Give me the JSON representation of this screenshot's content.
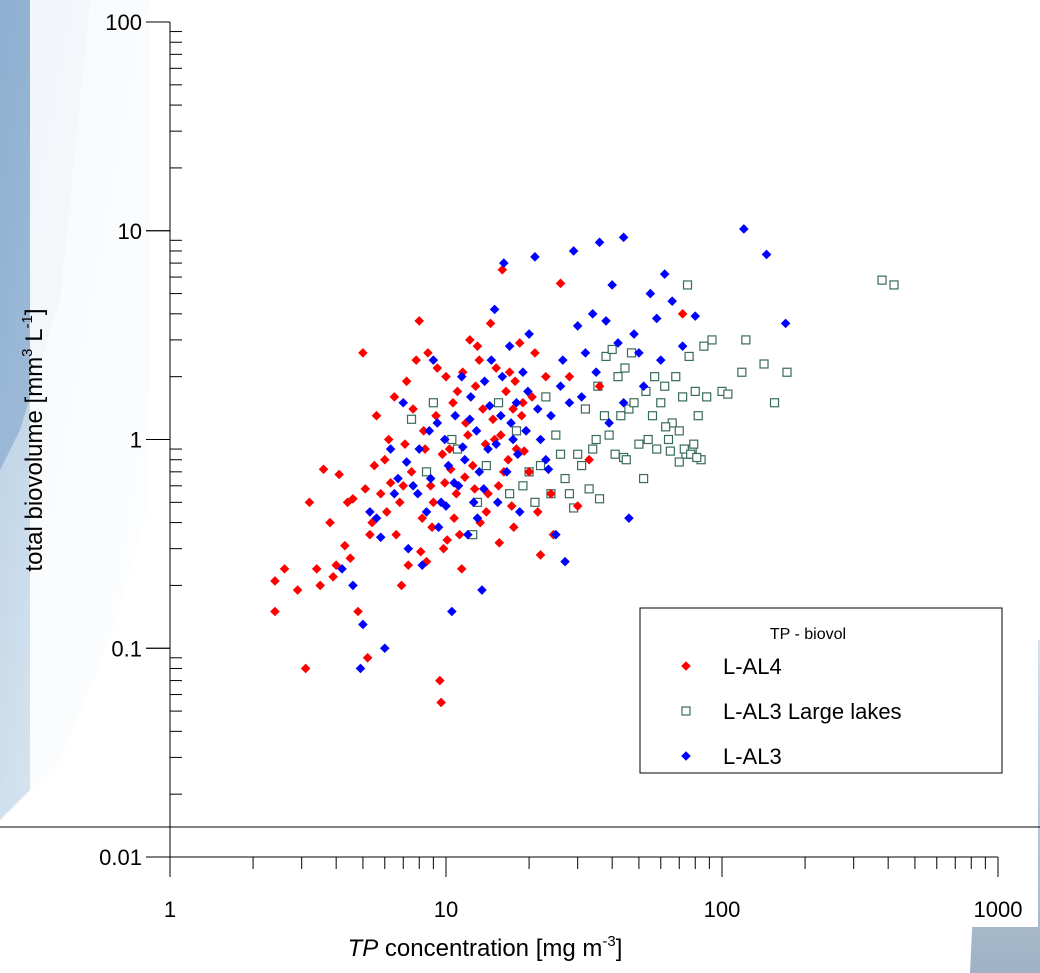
{
  "chart_data": {
    "type": "scatter",
    "xscale": "log",
    "yscale": "log",
    "xlim": [
      1,
      1000
    ],
    "ylim": [
      0.01,
      100
    ],
    "grid": false,
    "legend_placement": "bottom-right",
    "title": "",
    "xlabel": {
      "italic_part": "TP",
      "text_part": " concentration [mg m",
      "superscript": "-3",
      "suffix": "]"
    },
    "ylabel": {
      "text_part": "total biovolume [mm",
      "superscript1": "3",
      "middle": " L",
      "superscript2": "-1",
      "suffix": "]"
    },
    "x_ticks": [
      {
        "value": 1,
        "label": "1"
      },
      {
        "value": 10,
        "label": "10"
      },
      {
        "value": 100,
        "label": "100"
      },
      {
        "value": 1000,
        "label": "1000"
      }
    ],
    "y_ticks": [
      {
        "value": 0.01,
        "label": "0.01"
      },
      {
        "value": 0.1,
        "label": "0.1"
      },
      {
        "value": 1,
        "label": "1"
      },
      {
        "value": 10,
        "label": "10"
      },
      {
        "value": 100,
        "label": "100"
      }
    ],
    "legend_title": "TP - biovol",
    "series": [
      {
        "name": "L-AL4",
        "marker": "filled-diamond",
        "color": "#ff0000",
        "points": [
          [
            2.4,
            0.15
          ],
          [
            2.4,
            0.21
          ],
          [
            2.6,
            0.24
          ],
          [
            2.9,
            0.19
          ],
          [
            3.1,
            0.08
          ],
          [
            3.2,
            0.5
          ],
          [
            3.4,
            0.24
          ],
          [
            3.6,
            0.72
          ],
          [
            3.8,
            0.4
          ],
          [
            3.9,
            0.22
          ],
          [
            4.1,
            0.68
          ],
          [
            4.3,
            0.31
          ],
          [
            4.5,
            0.27
          ],
          [
            4.6,
            0.52
          ],
          [
            4.8,
            0.15
          ],
          [
            5.0,
            2.6
          ],
          [
            5.1,
            0.58
          ],
          [
            5.2,
            0.09
          ],
          [
            5.4,
            0.4
          ],
          [
            5.6,
            1.3
          ],
          [
            5.8,
            0.55
          ],
          [
            6.0,
            0.8
          ],
          [
            6.2,
            1.0
          ],
          [
            6.5,
            1.6
          ],
          [
            6.8,
            0.5
          ],
          [
            7.0,
            0.6
          ],
          [
            7.2,
            1.9
          ],
          [
            7.5,
            0.7
          ],
          [
            7.8,
            2.4
          ],
          [
            8.0,
            3.7
          ],
          [
            8.2,
            0.42
          ],
          [
            8.4,
            0.9
          ],
          [
            8.6,
            2.6
          ],
          [
            8.8,
            0.6
          ],
          [
            9.0,
            0.5
          ],
          [
            9.2,
            1.3
          ],
          [
            9.5,
            0.07
          ],
          [
            9.6,
            0.055
          ],
          [
            9.8,
            0.3
          ],
          [
            10.0,
            2.0
          ],
          [
            10.3,
            0.9
          ],
          [
            10.6,
            1.5
          ],
          [
            10.9,
            0.55
          ],
          [
            11.2,
            0.35
          ],
          [
            11.5,
            2.1
          ],
          [
            11.8,
            1.2
          ],
          [
            12.2,
            3.0
          ],
          [
            12.5,
            0.75
          ],
          [
            12.8,
            1.8
          ],
          [
            13.2,
            2.4
          ],
          [
            13.6,
            1.4
          ],
          [
            14.0,
            0.45
          ],
          [
            14.5,
            3.6
          ],
          [
            15.0,
            1.0
          ],
          [
            15.5,
            0.6
          ],
          [
            16.0,
            6.5
          ],
          [
            16.5,
            1.7
          ],
          [
            17.0,
            2.1
          ],
          [
            17.5,
            1.4
          ],
          [
            18.0,
            0.9
          ],
          [
            18.5,
            2.9
          ],
          [
            19.0,
            1.5
          ],
          [
            20.0,
            0.7
          ],
          [
            21.0,
            2.6
          ],
          [
            22.0,
            0.28
          ],
          [
            23.0,
            2.0
          ],
          [
            24.0,
            0.55
          ],
          [
            26.0,
            5.6
          ],
          [
            28.0,
            2.0
          ],
          [
            30.0,
            0.48
          ],
          [
            33.0,
            0.8
          ],
          [
            36.0,
            1.8
          ],
          [
            72.0,
            4.0
          ],
          [
            6.1,
            0.45
          ],
          [
            6.6,
            0.35
          ],
          [
            7.3,
            0.25
          ],
          [
            8.1,
            0.29
          ],
          [
            8.9,
            0.38
          ],
          [
            9.9,
            0.62
          ],
          [
            10.7,
            0.42
          ],
          [
            11.7,
            0.66
          ],
          [
            12.7,
            0.58
          ],
          [
            13.9,
            0.95
          ],
          [
            14.8,
            1.25
          ],
          [
            15.8,
            1.05
          ],
          [
            16.8,
            0.8
          ],
          [
            17.8,
            1.9
          ],
          [
            19.5,
            1.1
          ],
          [
            7.6,
            1.4
          ],
          [
            9.3,
            2.2
          ],
          [
            11.0,
            1.7
          ],
          [
            13.0,
            2.8
          ],
          [
            15.2,
            2.2
          ],
          [
            18.8,
            1.3
          ],
          [
            20.5,
            1.6
          ],
          [
            5.3,
            0.35
          ],
          [
            4.4,
            0.5
          ],
          [
            3.5,
            0.2
          ],
          [
            4.0,
            0.25
          ],
          [
            5.5,
            0.75
          ],
          [
            6.3,
            0.62
          ],
          [
            7.1,
            0.95
          ],
          [
            8.3,
            1.1
          ],
          [
            9.7,
            0.85
          ],
          [
            10.4,
            0.72
          ],
          [
            12.0,
            1.05
          ],
          [
            14.2,
            0.55
          ],
          [
            16.2,
            0.7
          ],
          [
            17.3,
            0.48
          ],
          [
            19.2,
            0.88
          ],
          [
            6.9,
            0.2
          ],
          [
            8.5,
            0.26
          ],
          [
            10.1,
            0.33
          ],
          [
            11.4,
            0.24
          ],
          [
            13.3,
            0.4
          ],
          [
            15.6,
            0.32
          ],
          [
            17.6,
            0.38
          ],
          [
            21.5,
            0.45
          ],
          [
            24.5,
            0.35
          ]
        ]
      },
      {
        "name": "L-AL3 Large lakes",
        "marker": "open-square",
        "color": "#3a6b5a",
        "points": [
          [
            7.5,
            1.25
          ],
          [
            8.5,
            0.7
          ],
          [
            9.0,
            1.5
          ],
          [
            10.5,
            1.0
          ],
          [
            11.0,
            0.9
          ],
          [
            12.5,
            0.35
          ],
          [
            13.0,
            0.5
          ],
          [
            14.0,
            0.75
          ],
          [
            15.5,
            1.5
          ],
          [
            17.0,
            0.55
          ],
          [
            18.0,
            1.1
          ],
          [
            19.0,
            0.6
          ],
          [
            20.0,
            0.7
          ],
          [
            21.0,
            0.5
          ],
          [
            22.0,
            0.75
          ],
          [
            23.0,
            1.6
          ],
          [
            24.0,
            0.55
          ],
          [
            25.0,
            1.05
          ],
          [
            26.0,
            0.85
          ],
          [
            27.0,
            0.65
          ],
          [
            28.0,
            0.55
          ],
          [
            29.0,
            0.47
          ],
          [
            30.0,
            0.85
          ],
          [
            31.0,
            0.75
          ],
          [
            32.0,
            1.4
          ],
          [
            33.0,
            0.58
          ],
          [
            34.0,
            0.9
          ],
          [
            35.0,
            1.0
          ],
          [
            36.0,
            0.52
          ],
          [
            38.0,
            2.5
          ],
          [
            39.0,
            1.05
          ],
          [
            40.0,
            2.7
          ],
          [
            41.0,
            0.85
          ],
          [
            42.0,
            2.0
          ],
          [
            43.0,
            1.3
          ],
          [
            44.0,
            0.82
          ],
          [
            45.0,
            0.8
          ],
          [
            46.0,
            1.4
          ],
          [
            47.0,
            2.6
          ],
          [
            48.0,
            1.5
          ],
          [
            50.0,
            0.95
          ],
          [
            52.0,
            0.65
          ],
          [
            54.0,
            1.0
          ],
          [
            56.0,
            1.3
          ],
          [
            58.0,
            0.9
          ],
          [
            60.0,
            1.5
          ],
          [
            62.0,
            1.8
          ],
          [
            64.0,
            1.0
          ],
          [
            66.0,
            1.2
          ],
          [
            68.0,
            2.0
          ],
          [
            70.0,
            1.1
          ],
          [
            72.0,
            1.6
          ],
          [
            74.0,
            0.85
          ],
          [
            75.0,
            5.5
          ],
          [
            76.0,
            2.5
          ],
          [
            78.0,
            0.9
          ],
          [
            80.0,
            1.7
          ],
          [
            82.0,
            1.3
          ],
          [
            84.0,
            0.8
          ],
          [
            86.0,
            2.8
          ],
          [
            88.0,
            1.6
          ],
          [
            92.0,
            3.0
          ],
          [
            100.0,
            1.7
          ],
          [
            105.0,
            1.65
          ],
          [
            118.0,
            2.1
          ],
          [
            122.0,
            3.0
          ],
          [
            142.0,
            2.3
          ],
          [
            155.0,
            1.5
          ],
          [
            172.0,
            2.1
          ],
          [
            380.0,
            5.8
          ],
          [
            420.0,
            5.5
          ],
          [
            73.0,
            0.9
          ],
          [
            77.0,
            0.85
          ],
          [
            79.0,
            0.95
          ],
          [
            81.0,
            0.82
          ],
          [
            70.0,
            0.78
          ],
          [
            65.0,
            0.88
          ],
          [
            35.5,
            1.8
          ],
          [
            37.5,
            1.3
          ],
          [
            53.0,
            1.7
          ],
          [
            57.0,
            2.0
          ],
          [
            62.5,
            1.15
          ],
          [
            44.5,
            2.2
          ]
        ]
      },
      {
        "name": "L-AL3",
        "marker": "filled-diamond",
        "color": "#0000ff",
        "points": [
          [
            4.2,
            0.24
          ],
          [
            4.6,
            0.2
          ],
          [
            4.9,
            0.08
          ],
          [
            5.0,
            0.13
          ],
          [
            5.3,
            0.45
          ],
          [
            5.6,
            0.42
          ],
          [
            6.0,
            0.1
          ],
          [
            6.3,
            0.9
          ],
          [
            6.7,
            0.65
          ],
          [
            7.0,
            1.5
          ],
          [
            7.3,
            0.3
          ],
          [
            7.6,
            0.6
          ],
          [
            7.9,
            0.55
          ],
          [
            8.2,
            0.25
          ],
          [
            8.5,
            0.45
          ],
          [
            8.8,
            0.65
          ],
          [
            9.0,
            2.4
          ],
          [
            9.3,
            1.2
          ],
          [
            9.6,
            0.5
          ],
          [
            9.9,
            1.0
          ],
          [
            10.2,
            0.75
          ],
          [
            10.5,
            0.15
          ],
          [
            10.8,
            1.3
          ],
          [
            11.1,
            0.6
          ],
          [
            11.4,
            2.0
          ],
          [
            11.7,
            0.8
          ],
          [
            12.0,
            0.35
          ],
          [
            12.3,
            1.6
          ],
          [
            12.6,
            0.5
          ],
          [
            12.9,
            1.1
          ],
          [
            13.2,
            0.7
          ],
          [
            13.5,
            0.19
          ],
          [
            13.8,
            1.9
          ],
          [
            14.2,
            0.9
          ],
          [
            14.6,
            2.4
          ],
          [
            15.0,
            4.2
          ],
          [
            15.4,
            0.5
          ],
          [
            15.8,
            1.3
          ],
          [
            16.2,
            7.0
          ],
          [
            16.6,
            0.7
          ],
          [
            17.0,
            2.8
          ],
          [
            17.5,
            1.0
          ],
          [
            18.0,
            1.5
          ],
          [
            18.5,
            0.45
          ],
          [
            19.0,
            2.1
          ],
          [
            19.5,
            1.1
          ],
          [
            20.0,
            3.2
          ],
          [
            21.0,
            7.5
          ],
          [
            22.0,
            1.0
          ],
          [
            23.0,
            0.8
          ],
          [
            24.0,
            1.3
          ],
          [
            25.0,
            0.35
          ],
          [
            26.0,
            1.8
          ],
          [
            27.0,
            0.26
          ],
          [
            28.0,
            1.5
          ],
          [
            29.0,
            8.0
          ],
          [
            30.0,
            3.5
          ],
          [
            32.0,
            2.6
          ],
          [
            34.0,
            4.0
          ],
          [
            36.0,
            8.8
          ],
          [
            38.0,
            3.7
          ],
          [
            40.0,
            5.5
          ],
          [
            42.0,
            2.9
          ],
          [
            44.0,
            9.3
          ],
          [
            46.0,
            0.42
          ],
          [
            48.0,
            3.2
          ],
          [
            52.0,
            1.8
          ],
          [
            55.0,
            5.0
          ],
          [
            58.0,
            3.8
          ],
          [
            60.0,
            2.4
          ],
          [
            62.0,
            6.2
          ],
          [
            66.0,
            4.6
          ],
          [
            72.0,
            2.8
          ],
          [
            80.0,
            3.9
          ],
          [
            120.0,
            10.2
          ],
          [
            145.0,
            7.7
          ],
          [
            170.0,
            3.6
          ],
          [
            5.8,
            0.34
          ],
          [
            6.5,
            0.55
          ],
          [
            7.2,
            0.78
          ],
          [
            8.0,
            0.9
          ],
          [
            8.7,
            1.1
          ],
          [
            9.4,
            0.38
          ],
          [
            10.0,
            0.48
          ],
          [
            10.7,
            0.62
          ],
          [
            11.5,
            0.92
          ],
          [
            12.2,
            1.25
          ],
          [
            13.0,
            0.42
          ],
          [
            13.7,
            0.58
          ],
          [
            14.4,
            1.45
          ],
          [
            15.2,
            0.95
          ],
          [
            16.0,
            2.0
          ],
          [
            17.2,
            1.2
          ],
          [
            18.2,
            0.85
          ],
          [
            19.8,
            1.7
          ],
          [
            21.5,
            1.4
          ],
          [
            23.5,
            0.72
          ],
          [
            26.5,
            2.4
          ],
          [
            31.0,
            1.6
          ],
          [
            35.0,
            2.1
          ],
          [
            39.0,
            1.2
          ],
          [
            44.0,
            1.5
          ],
          [
            50.0,
            2.6
          ]
        ]
      }
    ]
  }
}
